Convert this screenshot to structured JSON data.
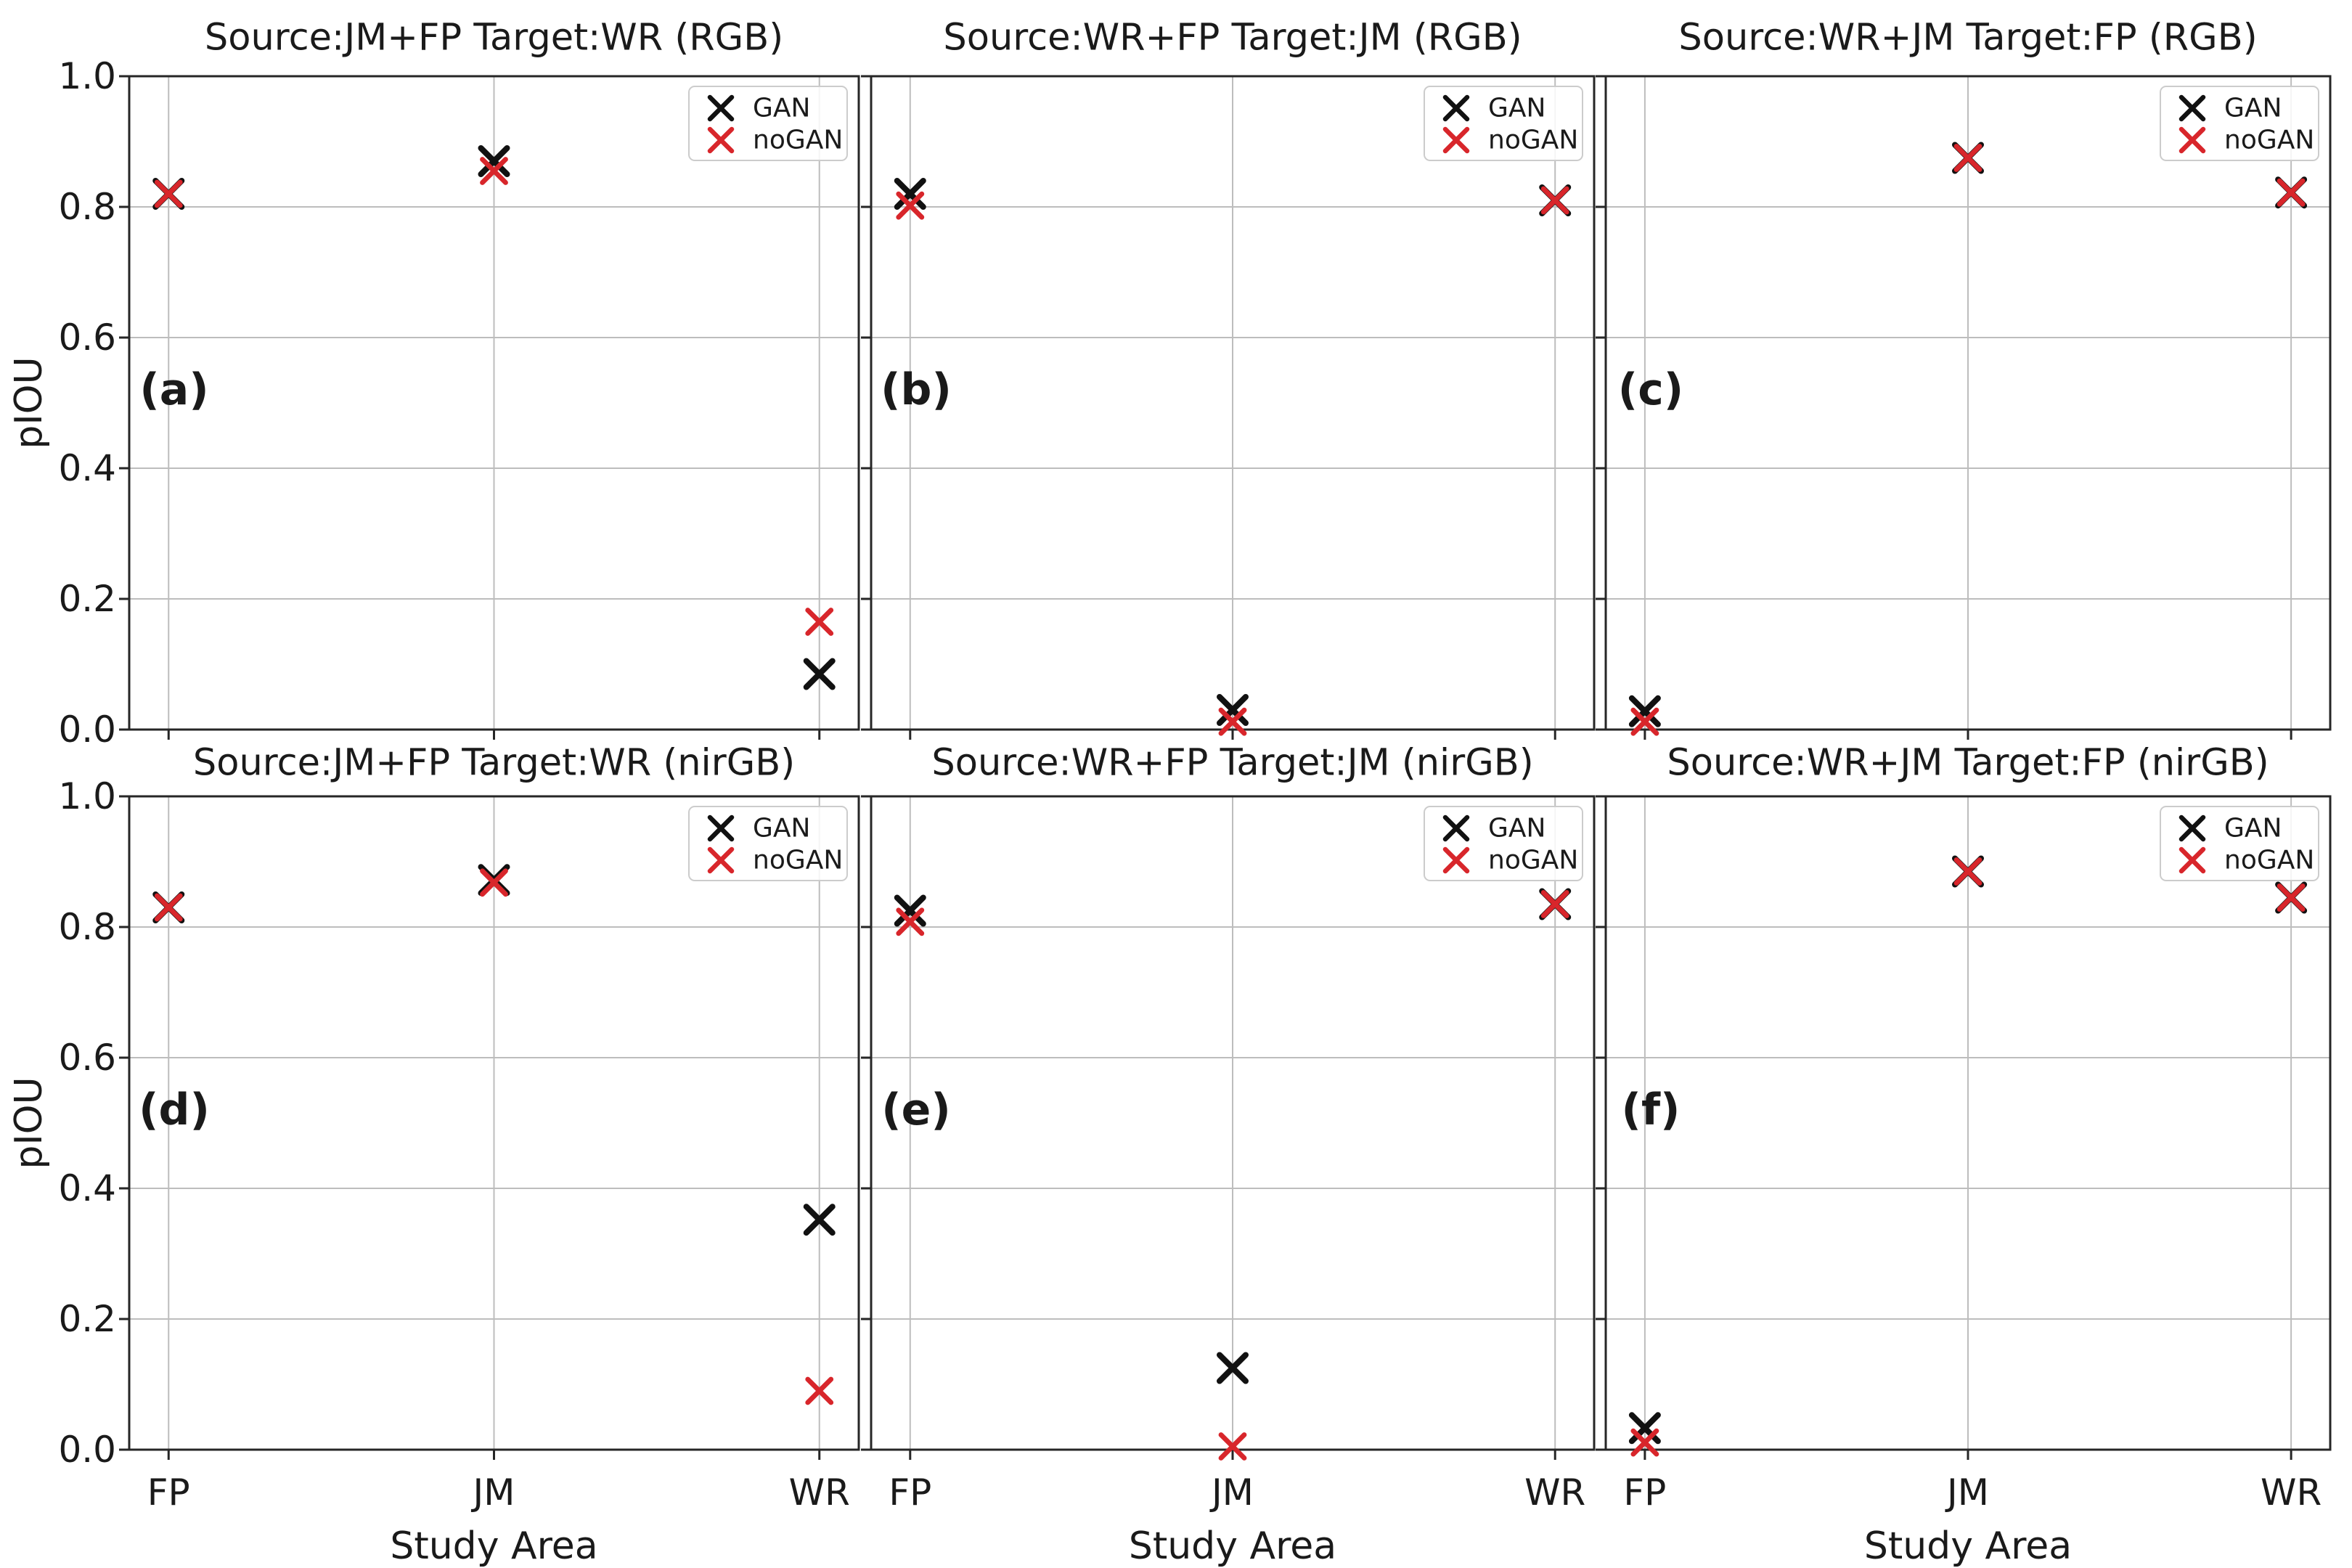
{
  "figure": {
    "ylabel": "pIOU",
    "xlabel": "Study Area"
  },
  "chart_data": {
    "type": "scatter",
    "marker": "x",
    "grid": true,
    "categories": [
      "FP",
      "JM",
      "WR"
    ],
    "xlabel": "Study Area",
    "ylabel": "pIOU",
    "ylim": [
      0.0,
      1.0
    ],
    "yticks": [
      "0.0",
      "0.2",
      "0.4",
      "0.6",
      "0.8",
      "1.0"
    ],
    "legend": {
      "position": "upper right",
      "entries": [
        {
          "name": "GAN",
          "color": "#111111"
        },
        {
          "name": "noGAN",
          "color": "#d8262b"
        }
      ]
    },
    "panels": [
      {
        "label": "(a)",
        "title": "Source:JM+FP Target:WR (RGB)",
        "row": 0,
        "col": 0,
        "series": [
          {
            "name": "GAN",
            "values": [
              0.82,
              0.87,
              0.085
            ]
          },
          {
            "name": "noGAN",
            "values": [
              0.82,
              0.855,
              0.165
            ]
          }
        ]
      },
      {
        "label": "(b)",
        "title": "Source:WR+FP Target:JM (RGB)",
        "row": 0,
        "col": 1,
        "series": [
          {
            "name": "GAN",
            "values": [
              0.82,
              0.03,
              0.81
            ]
          },
          {
            "name": "noGAN",
            "values": [
              0.802,
              0.012,
              0.81
            ]
          }
        ]
      },
      {
        "label": "(c)",
        "title": "Source:WR+JM Target:FP (RGB)",
        "row": 0,
        "col": 2,
        "series": [
          {
            "name": "GAN",
            "values": [
              0.028,
              0.875,
              0.822
            ]
          },
          {
            "name": "noGAN",
            "values": [
              0.012,
              0.875,
              0.822
            ]
          }
        ]
      },
      {
        "label": "(d)",
        "title": "Source:JM+FP Target:WR (nirGB)",
        "row": 1,
        "col": 0,
        "series": [
          {
            "name": "GAN",
            "values": [
              0.83,
              0.872,
              0.352
            ]
          },
          {
            "name": "noGAN",
            "values": [
              0.83,
              0.868,
              0.09
            ]
          }
        ]
      },
      {
        "label": "(e)",
        "title": "Source:WR+FP Target:JM (nirGB)",
        "row": 1,
        "col": 1,
        "series": [
          {
            "name": "GAN",
            "values": [
              0.825,
              0.125,
              0.835
            ]
          },
          {
            "name": "noGAN",
            "values": [
              0.808,
              0.005,
              0.835
            ]
          }
        ]
      },
      {
        "label": "(f)",
        "title": "Source:WR+JM Target:FP (nirGB)",
        "row": 1,
        "col": 2,
        "series": [
          {
            "name": "GAN",
            "values": [
              0.033,
              0.885,
              0.845
            ]
          },
          {
            "name": "noGAN",
            "values": [
              0.011,
              0.885,
              0.845
            ]
          }
        ]
      }
    ]
  },
  "colors": {
    "gan": "#111111",
    "nogan": "#d8262b",
    "grid": "#bdbdbd",
    "spine": "#262626",
    "legend_border": "#cccccc",
    "background": "#ffffff"
  }
}
